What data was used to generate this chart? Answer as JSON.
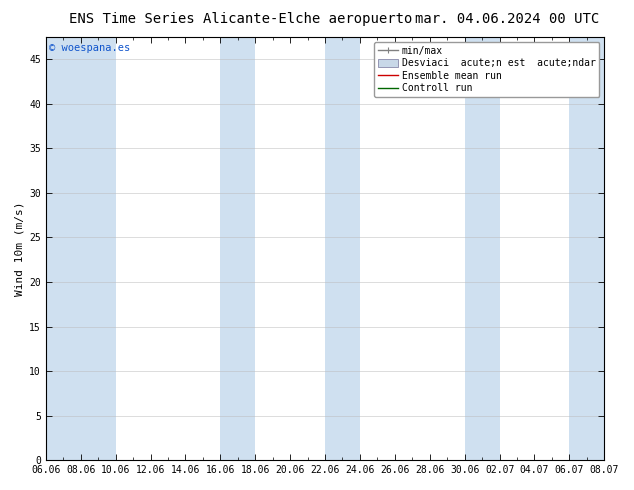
{
  "title_left": "ENS Time Series Alicante-Elche aeropuerto",
  "title_right": "mar. 04.06.2024 00 UTC",
  "ylabel": "Wind 10m (m/s)",
  "watermark": "© woespana.es",
  "ylim": [
    0,
    47.5
  ],
  "yticks": [
    0,
    5,
    10,
    15,
    20,
    25,
    30,
    35,
    40,
    45
  ],
  "xtick_labels": [
    "06.06",
    "08.06",
    "10.06",
    "12.06",
    "14.06",
    "16.06",
    "18.06",
    "20.06",
    "22.06",
    "24.06",
    "26.06",
    "28.06",
    "30.06",
    "02.07",
    "04.07",
    "06.07",
    "08.07"
  ],
  "band_color": "#cfe0f0",
  "background_color": "#ffffff",
  "title_fontsize": 10,
  "tick_fontsize": 7,
  "ylabel_fontsize": 8,
  "watermark_fontsize": 7.5,
  "legend_fontsize": 7,
  "grid_color": "#bbbbbb",
  "axis_color": "#000000",
  "legend_label1": "min/max",
  "legend_label2": "Desviaci  acute;n est  acute;ndar",
  "legend_label3": "Ensemble mean run",
  "legend_label4": "Controll run",
  "legend_color1": "#808080",
  "legend_color2": "#c8d8e8",
  "legend_color3": "#cc0000",
  "legend_color4": "#006600"
}
